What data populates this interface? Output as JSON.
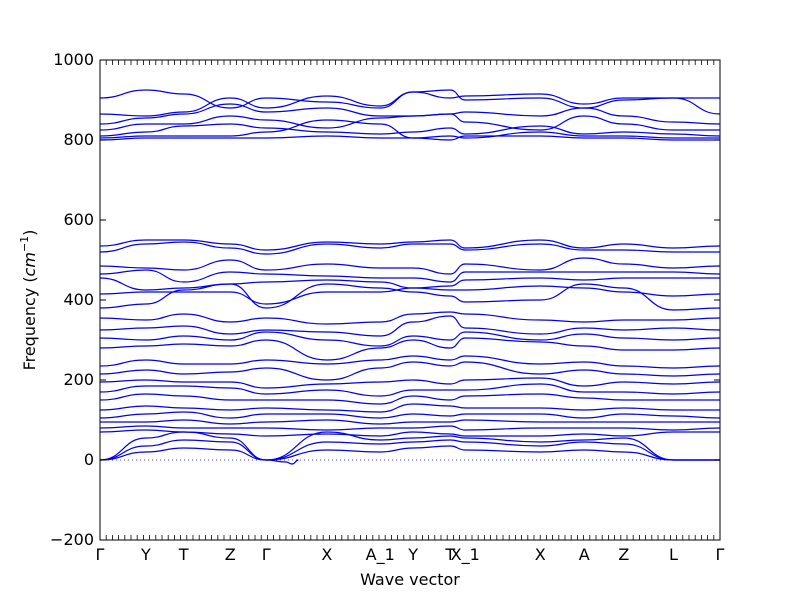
{
  "chart_data": {
    "type": "line",
    "xlabel": "Wave vector",
    "ylabel": "Frequency (cm^-1)",
    "ylabel_prefix": "Frequency (",
    "ylabel_unit": "cm",
    "ylabel_exp": "−1",
    "ylabel_suffix": ")",
    "ylim": [
      -200,
      1000
    ],
    "yticks": [
      -200,
      0,
      200,
      400,
      600,
      800,
      1000
    ],
    "ytick_labels": [
      "−200",
      "0",
      "200",
      "400",
      "600",
      "800",
      "1000"
    ],
    "grid": false,
    "line_color": "#0000ee",
    "zero_line_color": "#0000ee",
    "high_symmetry_points": [
      {
        "label": "Γ",
        "x": 0
      },
      {
        "label": "Y",
        "x": 0.074
      },
      {
        "label": "T",
        "x": 0.135
      },
      {
        "label": "Z",
        "x": 0.21
      },
      {
        "label": "Γ",
        "x": 0.268
      },
      {
        "label": "X",
        "x": 0.366
      },
      {
        "label": "A_1",
        "x": 0.452
      },
      {
        "label": "Y",
        "x": 0.505
      },
      {
        "label": "T",
        "x": 0.565
      },
      {
        "label": "X_1",
        "x": 0.589
      },
      {
        "label": "X",
        "x": 0.71
      },
      {
        "label": "A",
        "x": 0.781
      },
      {
        "label": "Z",
        "x": 0.845
      },
      {
        "label": "L",
        "x": 0.925
      },
      {
        "label": "Γ",
        "x": 1.0
      }
    ],
    "x_range": [
      0,
      1
    ],
    "series": [
      {
        "values": [
          905,
          925,
          915,
          880,
          905,
          895,
          880,
          920,
          905,
          910,
          915,
          890,
          905,
          905
        ]
      },
      {
        "values": [
          865,
          860,
          870,
          905,
          880,
          910,
          885,
          920,
          925,
          900,
          905,
          880,
          900,
          905
        ]
      },
      {
        "values": [
          840,
          855,
          865,
          890,
          870,
          880,
          860,
          860,
          865,
          870,
          860,
          880,
          860,
          845
        ]
      },
      {
        "values": [
          825,
          840,
          840,
          860,
          850,
          830,
          855,
          860,
          865,
          845,
          825,
          860,
          840,
          825
        ]
      },
      {
        "values": [
          810,
          820,
          835,
          840,
          830,
          820,
          815,
          820,
          830,
          815,
          835,
          815,
          820,
          815
        ]
      },
      {
        "values": [
          805,
          810,
          810,
          810,
          820,
          850,
          840,
          805,
          810,
          805,
          820,
          810,
          810,
          805
        ]
      },
      {
        "values": [
          800,
          805,
          805,
          805,
          805,
          810,
          805,
          805,
          800,
          810,
          810,
          805,
          805,
          800
        ]
      },
      {
        "values": [
          535,
          550,
          550,
          540,
          525,
          545,
          540,
          545,
          550,
          530,
          550,
          530,
          540,
          530
        ]
      },
      {
        "values": [
          520,
          540,
          545,
          530,
          515,
          540,
          530,
          540,
          540,
          525,
          540,
          525,
          525,
          520
        ]
      },
      {
        "values": [
          485,
          480,
          475,
          500,
          475,
          490,
          480,
          480,
          465,
          490,
          475,
          505,
          490,
          480
        ]
      },
      {
        "values": [
          465,
          475,
          445,
          470,
          465,
          460,
          455,
          455,
          445,
          470,
          470,
          470,
          470,
          470
        ]
      },
      {
        "values": [
          455,
          425,
          430,
          440,
          445,
          450,
          445,
          430,
          435,
          450,
          455,
          450,
          455,
          455
        ]
      },
      {
        "values": [
          415,
          420,
          420,
          420,
          390,
          420,
          420,
          430,
          425,
          425,
          435,
          430,
          420,
          410
        ]
      },
      {
        "values": [
          380,
          390,
          425,
          440,
          380,
          440,
          430,
          420,
          410,
          395,
          400,
          440,
          430,
          375
        ]
      },
      {
        "values": [
          355,
          350,
          365,
          345,
          355,
          340,
          345,
          365,
          370,
          365,
          350,
          345,
          350,
          350
        ]
      },
      {
        "values": [
          325,
          330,
          335,
          315,
          325,
          320,
          310,
          345,
          360,
          330,
          315,
          330,
          325,
          330
        ]
      },
      {
        "values": [
          305,
          300,
          310,
          300,
          320,
          300,
          285,
          310,
          300,
          320,
          300,
          315,
          305,
          300
        ]
      },
      {
        "values": [
          280,
          285,
          290,
          285,
          300,
          250,
          280,
          300,
          280,
          305,
          295,
          285,
          275,
          275
        ]
      },
      {
        "values": [
          235,
          250,
          240,
          240,
          250,
          240,
          250,
          260,
          250,
          260,
          240,
          245,
          235,
          230
        ]
      },
      {
        "values": [
          215,
          225,
          215,
          220,
          230,
          200,
          230,
          245,
          235,
          245,
          215,
          225,
          215,
          210
        ]
      },
      {
        "values": [
          195,
          200,
          195,
          195,
          180,
          190,
          195,
          200,
          190,
          200,
          205,
          185,
          195,
          190
        ]
      },
      {
        "values": [
          170,
          185,
          185,
          180,
          165,
          175,
          160,
          175,
          175,
          175,
          190,
          170,
          170,
          165
        ]
      },
      {
        "values": [
          150,
          165,
          160,
          150,
          150,
          150,
          140,
          160,
          150,
          160,
          165,
          155,
          150,
          150
        ]
      },
      {
        "values": [
          125,
          135,
          130,
          125,
          130,
          125,
          120,
          140,
          135,
          130,
          130,
          125,
          130,
          125
        ]
      },
      {
        "values": [
          105,
          115,
          120,
          105,
          115,
          115,
          105,
          115,
          110,
          115,
          115,
          105,
          115,
          110
        ]
      },
      {
        "values": [
          95,
          95,
          100,
          90,
          95,
          100,
          90,
          95,
          95,
          100,
          95,
          95,
          95,
          95
        ]
      },
      {
        "values": [
          80,
          85,
          80,
          80,
          80,
          75,
          80,
          80,
          85,
          75,
          80,
          80,
          80,
          75
        ]
      },
      {
        "values": [
          70,
          75,
          70,
          65,
          60,
          65,
          60,
          70,
          65,
          60,
          60,
          65,
          60,
          70
        ]
      },
      {
        "values": [
          0,
          55,
          70,
          55,
          0,
          70,
          50,
          55,
          60,
          55,
          45,
          50,
          55,
          0
        ]
      },
      {
        "values": [
          0,
          35,
          50,
          45,
          0,
          45,
          40,
          45,
          50,
          45,
          35,
          45,
          40,
          0
        ]
      },
      {
        "values": [
          0,
          20,
          30,
          25,
          0,
          25,
          20,
          30,
          35,
          25,
          20,
          25,
          20,
          0
        ]
      }
    ],
    "series_x": [
      0,
      0.074,
      0.135,
      0.21,
      0.268,
      0.366,
      0.452,
      0.505,
      0.565,
      0.589,
      0.71,
      0.781,
      0.845,
      0.925
    ],
    "soft_mode_dip": {
      "x": [
        0.268,
        0.3,
        0.31,
        0.32
      ],
      "y": [
        0,
        -5,
        -10,
        0
      ]
    }
  }
}
